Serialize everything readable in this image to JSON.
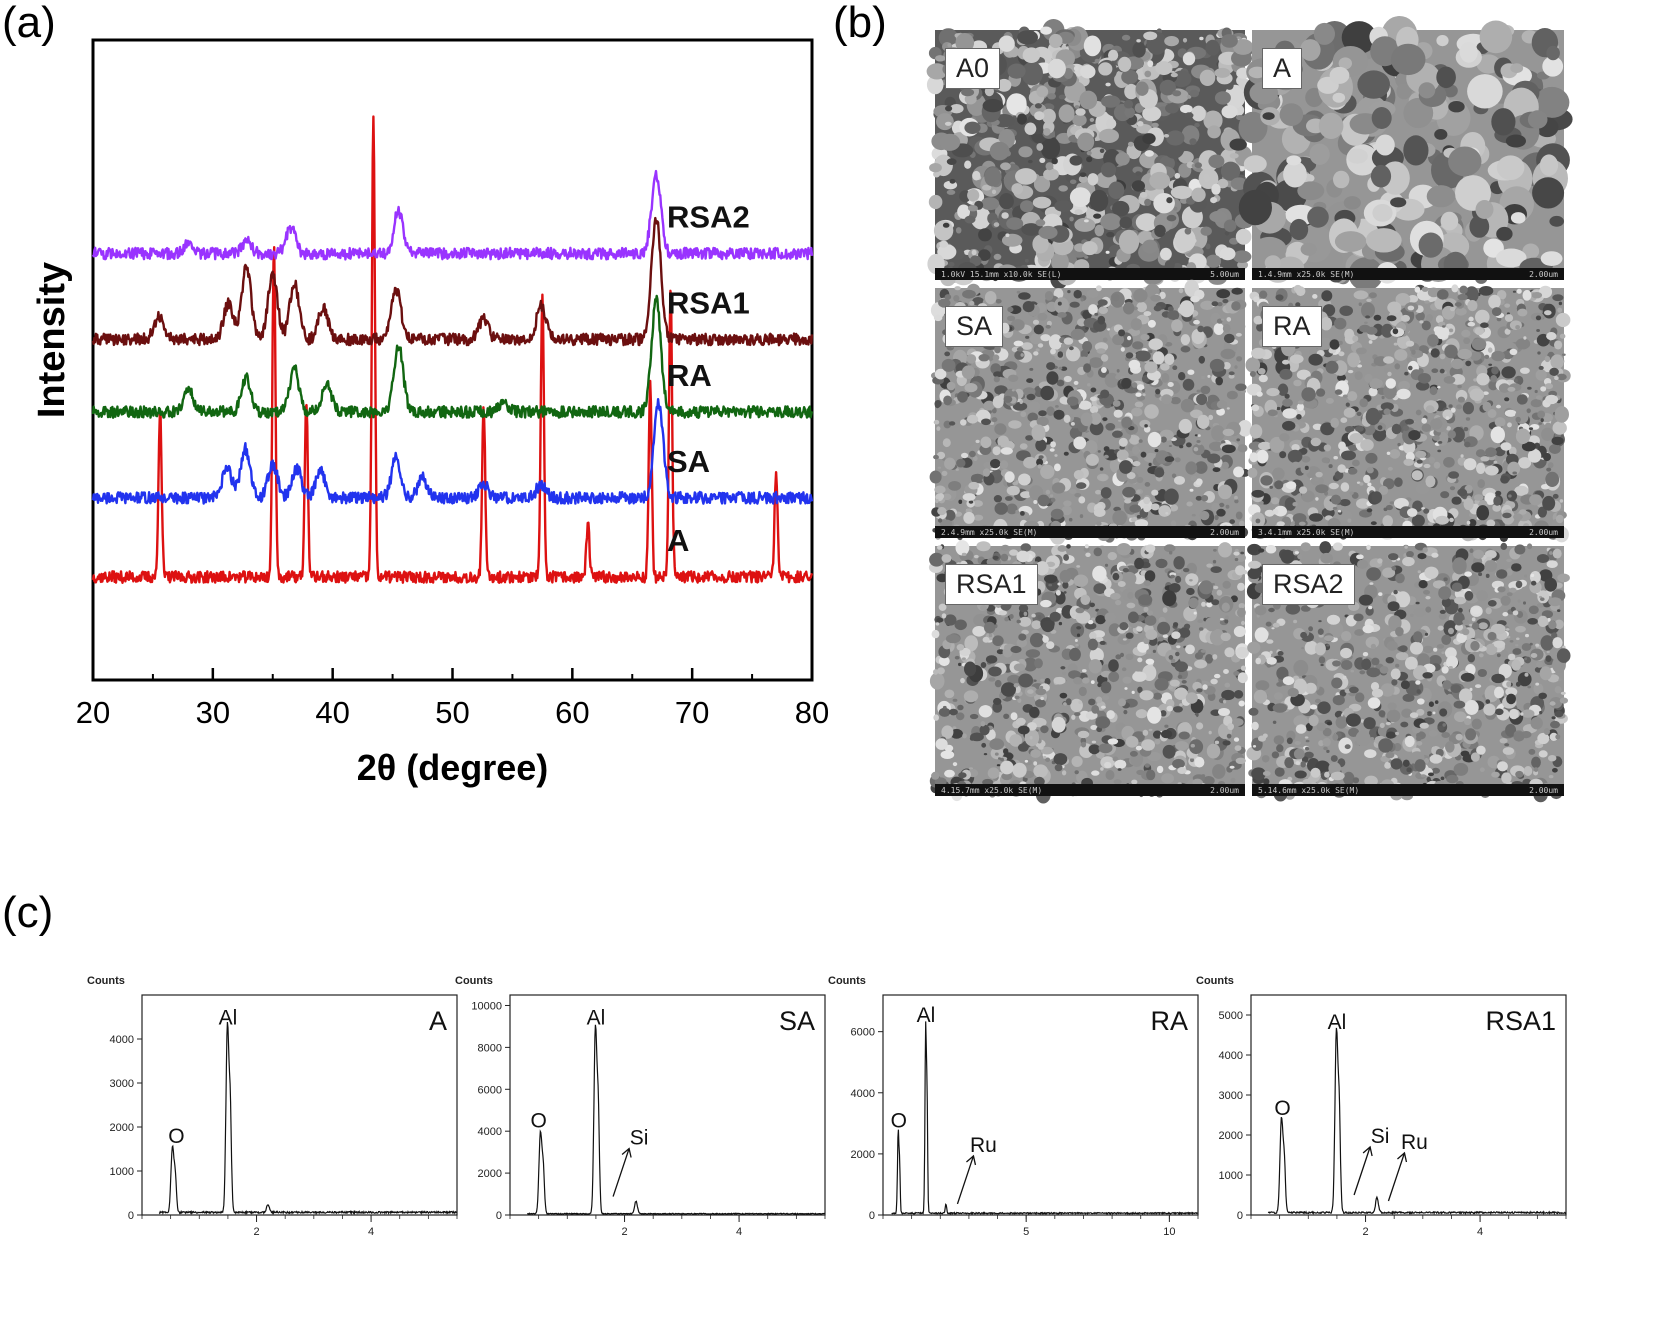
{
  "panels": {
    "a": "(a)",
    "b": "(b)",
    "c": "(c)"
  },
  "colors": {
    "A": "#dd1111",
    "SA": "#2233ee",
    "RA": "#116611",
    "RSA1": "#6b0f0f",
    "RSA2": "#9933ff"
  },
  "sem": [
    {
      "label": "A0",
      "bar_text": "1.0kV 15.1mm x10.0k SE(L)",
      "scale": "5.00um"
    },
    {
      "label": "A",
      "bar_text": "1.4.9mm x25.0k SE(M)",
      "scale": "2.00um"
    },
    {
      "label": "SA",
      "bar_text": "2.4.9mm x25.0k SE(M)",
      "scale": "2.00um"
    },
    {
      "label": "RA",
      "bar_text": "3.4.1mm x25.0k SE(M)",
      "scale": "2.00um"
    },
    {
      "label": "RSA1",
      "bar_text": "4.15.7mm x25.0k SE(M)",
      "scale": "2.00um"
    },
    {
      "label": "RSA2",
      "bar_text": "5.14.6mm x25.0k SE(M)",
      "scale": "2.00um"
    }
  ],
  "chart_data": [
    {
      "type": "line",
      "title": "",
      "xlabel": "2θ (degree)",
      "ylabel": "Intensity",
      "xlim": [
        20,
        80
      ],
      "xticks": [
        20,
        30,
        40,
        50,
        60,
        70,
        80
      ],
      "yticks_shown": false,
      "series": [
        {
          "name": "A",
          "offset": 0,
          "peaks": [
            [
              25.6,
              5.2
            ],
            [
              35.1,
              10.0
            ],
            [
              37.8,
              5.4
            ],
            [
              43.4,
              14.0
            ],
            [
              52.6,
              5.1
            ],
            [
              57.5,
              8.6
            ],
            [
              61.3,
              1.6
            ],
            [
              66.5,
              5.8
            ],
            [
              68.2,
              8.8
            ],
            [
              77.0,
              3.1
            ]
          ]
        },
        {
          "name": "SA",
          "offset": 2.4,
          "peaks": [
            [
              31.2,
              0.9
            ],
            [
              32.7,
              1.5
            ],
            [
              35.0,
              1.0
            ],
            [
              37.0,
              0.9
            ],
            [
              39.0,
              0.8
            ],
            [
              45.3,
              1.2
            ],
            [
              47.5,
              0.6
            ],
            [
              52.6,
              0.4
            ],
            [
              57.4,
              0.4
            ],
            [
              67.2,
              2.9
            ]
          ]
        },
        {
          "name": "RA",
          "offset": 5.0,
          "peaks": [
            [
              28.0,
              0.7
            ],
            [
              32.8,
              1.0
            ],
            [
              36.8,
              1.3
            ],
            [
              39.5,
              0.9
            ],
            [
              45.5,
              2.0
            ],
            [
              54.2,
              0.3
            ],
            [
              67.0,
              3.4
            ]
          ]
        },
        {
          "name": "RSA1",
          "offset": 7.2,
          "peaks": [
            [
              25.5,
              0.7
            ],
            [
              31.3,
              1.1
            ],
            [
              32.8,
              2.2
            ],
            [
              35.0,
              2.0
            ],
            [
              36.8,
              1.7
            ],
            [
              39.2,
              1.0
            ],
            [
              45.3,
              1.5
            ],
            [
              52.6,
              0.6
            ],
            [
              57.4,
              1.0
            ],
            [
              67.0,
              3.7
            ]
          ]
        },
        {
          "name": "RSA2",
          "offset": 9.8,
          "peaks": [
            [
              28.0,
              0.3
            ],
            [
              32.8,
              0.4
            ],
            [
              36.5,
              0.8
            ],
            [
              45.5,
              1.3
            ],
            [
              67.0,
              2.4
            ]
          ]
        }
      ]
    },
    {
      "type": "line",
      "title": "A",
      "ylabel": "Counts",
      "xlim": [
        0,
        5.5
      ],
      "ylim": [
        0,
        5000
      ],
      "yticks": [
        0,
        1000,
        2000,
        3000,
        4000
      ],
      "xticks": [
        2,
        4
      ],
      "annotations": [
        {
          "text": "O",
          "x": 0.6,
          "y": 1450
        },
        {
          "text": "Al",
          "x": 1.5,
          "y": 4150
        }
      ],
      "peaks": [
        [
          0.53,
          1450
        ],
        [
          1.49,
          4150
        ],
        [
          2.2,
          180
        ]
      ]
    },
    {
      "type": "line",
      "title": "SA",
      "ylabel": "Counts",
      "xlim": [
        0,
        5.5
      ],
      "ylim": [
        0,
        10500
      ],
      "yticks": [
        0,
        2000,
        4000,
        6000,
        8000,
        10000
      ],
      "xticks": [
        2,
        4
      ],
      "annotations": [
        {
          "text": "O",
          "x": 0.5,
          "y": 3800
        },
        {
          "text": "Al",
          "x": 1.5,
          "y": 8700
        },
        {
          "text": "Si",
          "x": 1.8,
          "y": 500
        }
      ],
      "peaks": [
        [
          0.53,
          3800
        ],
        [
          1.49,
          8700
        ],
        [
          2.2,
          600
        ]
      ]
    },
    {
      "type": "line",
      "title": "RA",
      "ylabel": "Counts",
      "xlim": [
        0,
        11
      ],
      "ylim": [
        0,
        7200
      ],
      "yticks": [
        0,
        2000,
        4000,
        6000
      ],
      "xticks": [
        5,
        10
      ],
      "annotations": [
        {
          "text": "O",
          "x": 0.55,
          "y": 2600
        },
        {
          "text": "Al",
          "x": 1.5,
          "y": 6050
        },
        {
          "text": "Ru",
          "x": 2.6,
          "y": 100
        }
      ],
      "peaks": [
        [
          0.53,
          2650
        ],
        [
          1.49,
          6050
        ],
        [
          2.2,
          300
        ]
      ]
    },
    {
      "type": "line",
      "title": "RSA1",
      "ylabel": "Counts",
      "xlim": [
        0,
        5.5
      ],
      "ylim": [
        0,
        5500
      ],
      "yticks": [
        0,
        1000,
        2000,
        3000,
        4000,
        5000
      ],
      "xticks": [
        2,
        4
      ],
      "annotations": [
        {
          "text": "O",
          "x": 0.55,
          "y": 2300
        },
        {
          "text": "Al",
          "x": 1.5,
          "y": 4450
        },
        {
          "text": "Si",
          "x": 1.8,
          "y": 300
        },
        {
          "text": "Ru",
          "x": 2.4,
          "y": 150
        }
      ],
      "peaks": [
        [
          0.53,
          2300
        ],
        [
          1.49,
          4450
        ],
        [
          2.2,
          380
        ]
      ]
    }
  ]
}
